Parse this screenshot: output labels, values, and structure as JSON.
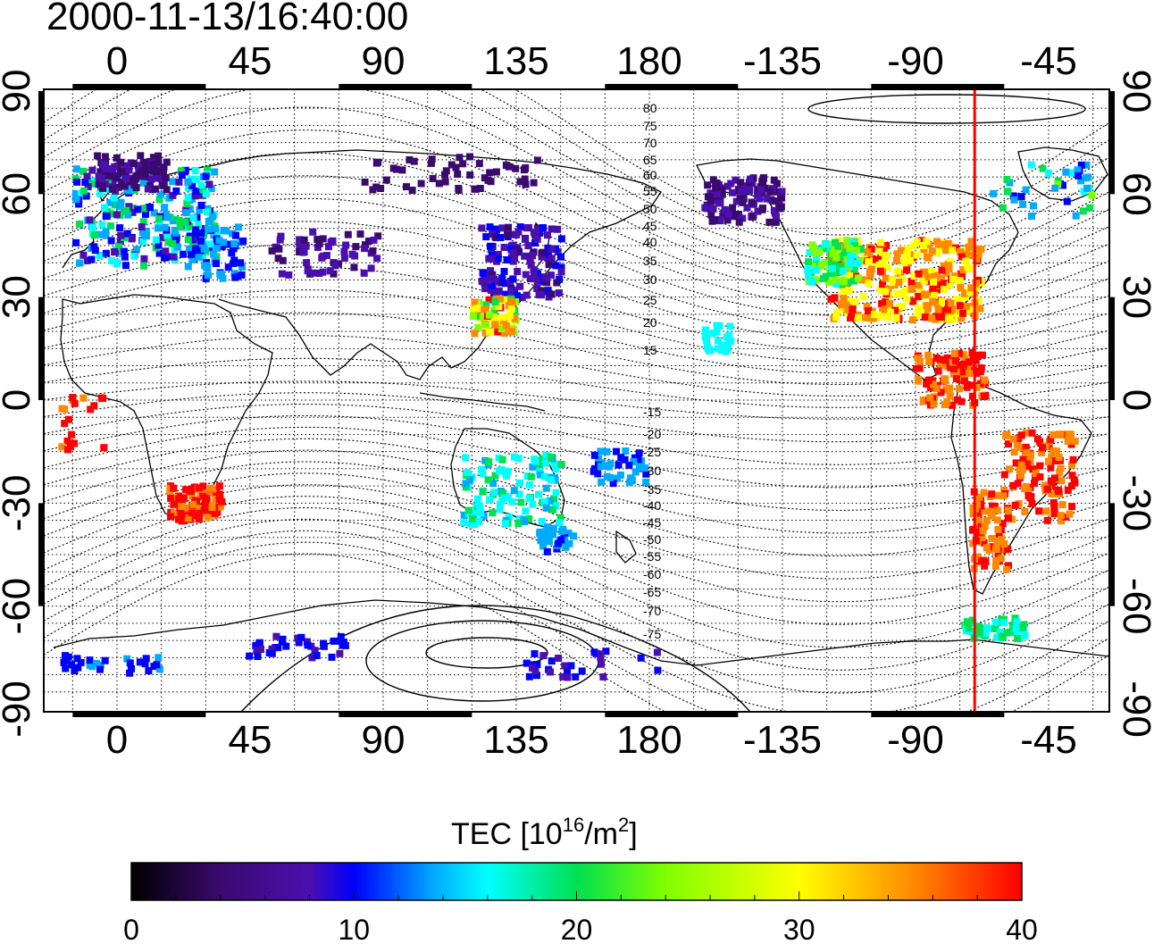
{
  "title": "2000-11-13/16:40:00",
  "top_lon_ticks": [
    "0",
    "45",
    "90",
    "135",
    "180",
    "-135",
    "-90",
    "-45"
  ],
  "bottom_lon_ticks": [
    "0",
    "45",
    "90",
    "135",
    "180",
    "-135",
    "-90",
    "-45"
  ],
  "lat_ticks": [
    "90",
    "60",
    "30",
    "0",
    "-30",
    "-60",
    "-90"
  ],
  "contour_labels_north": [
    "80",
    "75",
    "70",
    "65",
    "60",
    "55",
    "50",
    "45",
    "40",
    "35",
    "30",
    "25",
    "20",
    "15"
  ],
  "contour_labels_south": [
    "-15",
    "-20",
    "-25",
    "-30",
    "-35",
    "-40",
    "-45",
    "-50",
    "-55",
    "-60",
    "-65",
    "-70",
    "-75"
  ],
  "colorbar": {
    "label_prefix": "TEC  [10",
    "label_exp": "16",
    "label_mid": "/m",
    "label_exp2": "2",
    "label_suffix": "]",
    "ticks": [
      "0",
      "10",
      "20",
      "30",
      "40"
    ],
    "range": [
      0,
      40
    ]
  },
  "colors": {
    "marker_line": "#ff0000",
    "scale": [
      "#000000",
      "#3a0a6e",
      "#4b0fb0",
      "#0000ff",
      "#00aaff",
      "#00ffff",
      "#00e050",
      "#80ff00",
      "#ffff00",
      "#ff8800",
      "#ff0000"
    ]
  },
  "marker_longitude": -70
}
